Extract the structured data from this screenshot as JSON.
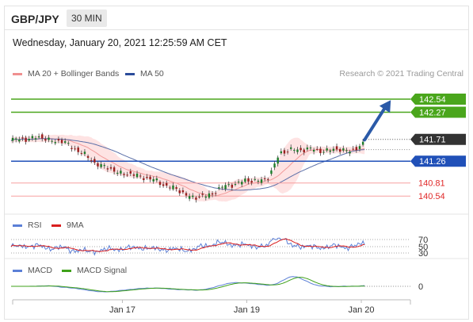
{
  "header": {
    "symbol": "GBP/JPY",
    "timeframe": "30 MIN"
  },
  "timestamp": "Wednesday, January 20, 2021 12:25:59 AM CET",
  "credit": "Research © 2021 Trading Central",
  "colors": {
    "green": "#4aa61c",
    "blue": "#2050b8",
    "red": "#ef5b5b",
    "band": "#fdd7d7",
    "ma50": "#5a6fa8"
  },
  "chart_data": [
    {
      "type": "line",
      "panel": "price",
      "legend": [
        {
          "label": "MA 20 + Bollinger Bands",
          "color": "#f09090"
        },
        {
          "label": "MA 50",
          "color": "#2b4c9b"
        }
      ],
      "ylim": [
        140.2,
        142.9
      ],
      "current_price": 141.71,
      "levels": [
        {
          "value": 142.54,
          "label": "142.54",
          "kind": "resistance"
        },
        {
          "value": 142.27,
          "label": "142.27",
          "kind": "resistance"
        },
        {
          "value": 141.26,
          "label": "141.26",
          "kind": "pivot"
        },
        {
          "value": 140.81,
          "label": "140.81",
          "kind": "support"
        },
        {
          "value": 140.54,
          "label": "140.54",
          "kind": "support"
        }
      ],
      "close_path": [
        [
          0,
          141.68
        ],
        [
          4,
          141.72
        ],
        [
          8,
          141.75
        ],
        [
          12,
          141.7
        ],
        [
          16,
          141.65
        ],
        [
          20,
          141.5
        ],
        [
          24,
          141.3
        ],
        [
          28,
          141.15
        ],
        [
          32,
          141.05
        ],
        [
          36,
          140.98
        ],
        [
          40,
          140.95
        ],
        [
          44,
          140.85
        ],
        [
          48,
          140.75
        ],
        [
          52,
          140.62
        ],
        [
          56,
          140.5
        ],
        [
          60,
          140.55
        ],
        [
          64,
          140.7
        ],
        [
          68,
          140.8
        ],
        [
          72,
          140.85
        ],
        [
          76,
          140.88
        ],
        [
          78,
          140.86
        ],
        [
          80,
          141.1
        ],
        [
          82,
          141.45
        ],
        [
          86,
          141.48
        ],
        [
          90,
          141.52
        ],
        [
          94,
          141.47
        ],
        [
          98,
          141.5
        ],
        [
          102,
          141.48
        ],
        [
          106,
          141.52
        ],
        [
          108,
          141.62
        ]
      ],
      "projection": [
        [
          108,
          141.7
        ],
        [
          116,
          142.52
        ]
      ],
      "x_ticks": [
        {
          "label": "Jan 17",
          "x": 34
        },
        {
          "label": "Jan 19",
          "x": 72
        },
        {
          "label": "Jan 20",
          "x": 107
        }
      ],
      "xlim": [
        0,
        122
      ]
    },
    {
      "type": "line",
      "panel": "rsi",
      "legend": [
        {
          "label": "RSI",
          "color": "#5b7fd6"
        },
        {
          "label": "9MA",
          "color": "#d91e1e"
        }
      ],
      "ticks": [
        {
          "value": 70,
          "label": "70"
        },
        {
          "value": 50,
          "label": "50"
        },
        {
          "value": 30,
          "label": "30"
        }
      ],
      "ylim": [
        0,
        100
      ]
    },
    {
      "type": "line",
      "panel": "macd",
      "legend": [
        {
          "label": "MACD",
          "color": "#5b7fd6"
        },
        {
          "label": "MACD Signal",
          "color": "#3fa11a"
        }
      ],
      "ticks": [
        {
          "value": 0,
          "label": "0"
        }
      ]
    }
  ]
}
